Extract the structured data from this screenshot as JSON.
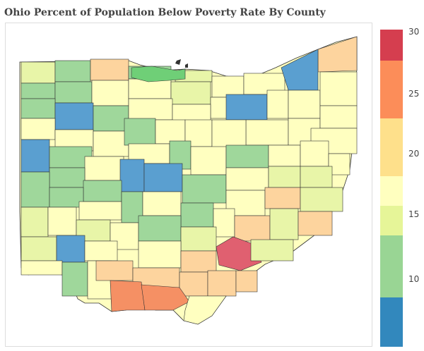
{
  "title": "Ohio Percent of Population Below Poverty Rate By County",
  "legend": {
    "ticks": [
      "30",
      "25",
      "20",
      "15",
      "10"
    ],
    "colors": [
      "#d53e4f",
      "#fc8d59",
      "#fee08b",
      "#ffffbf",
      "#e6f598",
      "#99d594",
      "#3288bd"
    ]
  },
  "colors": {
    "c_red": "#e06070",
    "c_orange": "#f59064",
    "c_lightorange": "#fdd49e",
    "c_yellow": "#ffffc0",
    "c_lightgreen": "#e8f5a8",
    "c_green": "#9fd79b",
    "c_blue": "#5a9fd0"
  }
}
